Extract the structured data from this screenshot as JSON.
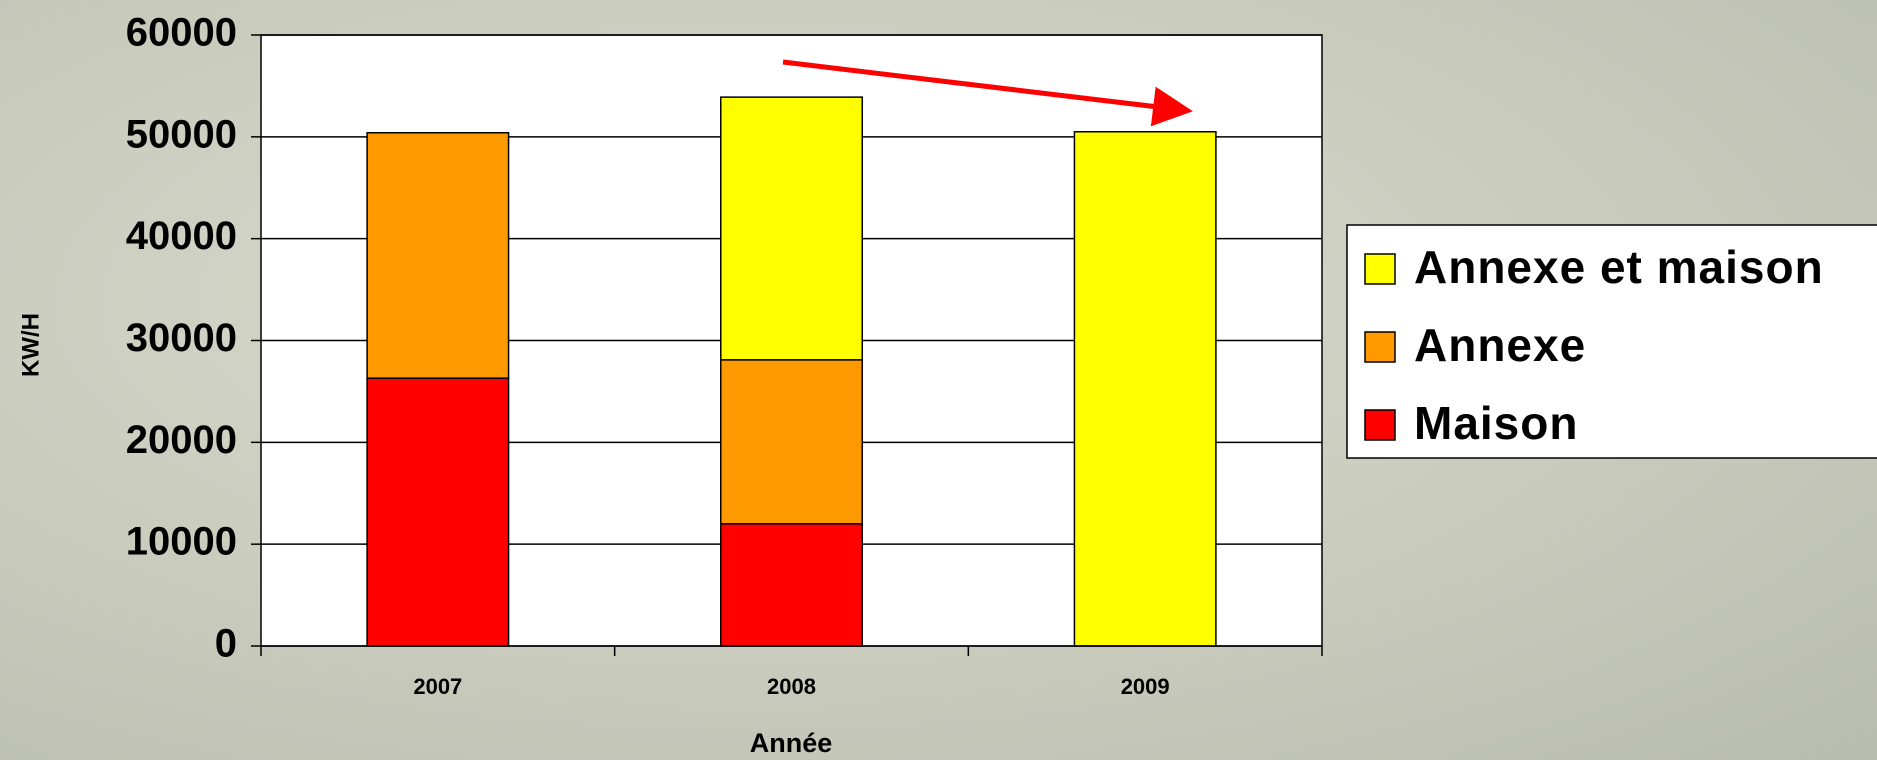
{
  "chart_data": {
    "type": "stacked_bar",
    "x_label": "Année",
    "y_label": "KW/H",
    "categories": [
      "2007",
      "2008",
      "2009"
    ],
    "series": [
      {
        "name": "Maison",
        "color": "#ff0000",
        "values": [
          26300,
          12000,
          null
        ]
      },
      {
        "name": "Annexe",
        "color": "#ff9900",
        "values": [
          24100,
          16100,
          null
        ]
      },
      {
        "name": "Annexe et maison",
        "color": "#ffff00",
        "values": [
          null,
          25800,
          50500
        ]
      }
    ],
    "ylim": [
      0,
      60000
    ],
    "yticks": [
      0,
      10000,
      20000,
      30000,
      40000,
      50000,
      60000
    ],
    "grid": true,
    "legend": "right"
  }
}
